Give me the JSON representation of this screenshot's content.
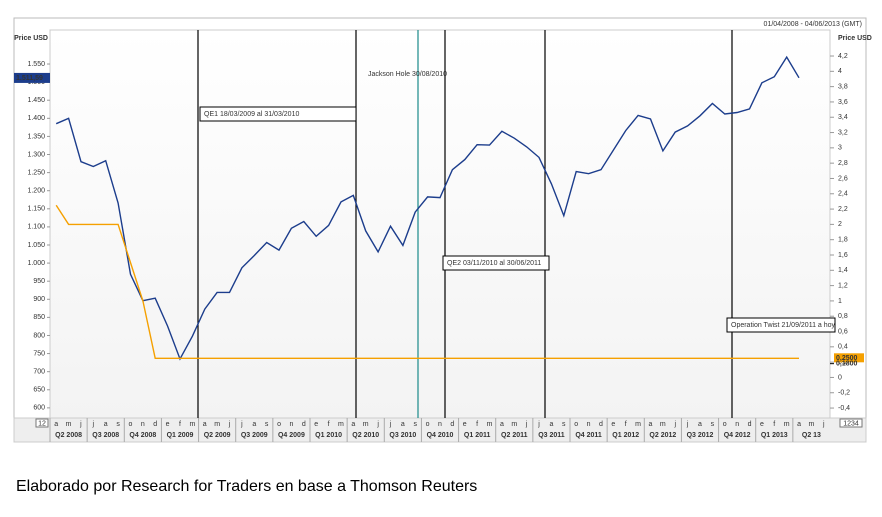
{
  "chart_data": {
    "type": "line",
    "date_range": "01/04/2008 - 04/06/2013 (GMT)",
    "y_axis_label": "Price USD",
    "y2_axis_label": "Price USD",
    "categories": [
      "a",
      "m",
      "j",
      "j",
      "a",
      "s",
      "o",
      "n",
      "d",
      "e",
      "f",
      "m",
      "a",
      "m",
      "j",
      "j",
      "a",
      "s",
      "o",
      "n",
      "d",
      "e",
      "f",
      "m",
      "a",
      "m",
      "j",
      "j",
      "a",
      "s",
      "o",
      "n",
      "d",
      "e",
      "f",
      "m",
      "a",
      "m",
      "j",
      "j",
      "a",
      "s",
      "o",
      "n",
      "d",
      "e",
      "f",
      "m",
      "a",
      "m",
      "j",
      "j",
      "a",
      "s",
      "o",
      "n",
      "d",
      "e",
      "f",
      "m",
      "a",
      "m",
      "j"
    ],
    "quarters": [
      "Q2 2008",
      "Q3 2008",
      "Q4 2008",
      "Q1 2009",
      "Q2 2009",
      "Q3 2009",
      "Q4 2009",
      "Q1 2010",
      "Q2 2010",
      "Q3 2010",
      "Q4 2010",
      "Q1 2011",
      "Q2 2011",
      "Q3 2011",
      "Q4 2011",
      "Q1 2012",
      "Q2 2012",
      "Q3 2012",
      "Q4 2012",
      "Q1 2013",
      "Q2 13"
    ],
    "series": [
      {
        "color": "#1c3d8c",
        "values": [
          1385,
          1400,
          1280,
          1267,
          1283,
          1166,
          969,
          896,
          903,
          826,
          735,
          798,
          873,
          919,
          919,
          987,
          1021,
          1057,
          1036,
          1096,
          1115,
          1074,
          1104,
          1169,
          1187,
          1089,
          1031,
          1102,
          1049,
          1141,
          1183,
          1181,
          1258,
          1286,
          1327,
          1326,
          1364,
          1345,
          1321,
          1292,
          1219,
          1131,
          1253,
          1247,
          1258,
          1312,
          1366,
          1408,
          1398,
          1310,
          1362,
          1379,
          1407,
          1441,
          1412,
          1416,
          1426,
          1498,
          1515,
          1569,
          1512,
          null,
          null
        ]
      },
      {
        "color": "#f5a000",
        "axis": "y2",
        "values": [
          2.25,
          2,
          2,
          2,
          2,
          2,
          1.5,
          1,
          0.25,
          0.25,
          0.25,
          0.25,
          0.25,
          0.25,
          0.25,
          0.25,
          0.25,
          0.25,
          0.25,
          0.25,
          0.25,
          0.25,
          0.25,
          0.25,
          0.25,
          0.25,
          0.25,
          0.25,
          0.25,
          0.25,
          0.25,
          0.25,
          0.25,
          0.25,
          0.25,
          0.25,
          0.25,
          0.25,
          0.25,
          0.25,
          0.25,
          0.25,
          0.25,
          0.25,
          0.25,
          0.25,
          0.25,
          0.25,
          0.25,
          0.25,
          0.25,
          0.25,
          0.25,
          0.25,
          0.25,
          0.25,
          0.25,
          0.25,
          0.25,
          0.25,
          0.25,
          null,
          null
        ]
      }
    ],
    "ylim": [
      572,
      1644
    ],
    "yticks": [
      600,
      650,
      700,
      750,
      800,
      850,
      900,
      950,
      {
        "value": 1000,
        "label": "1.000"
      },
      {
        "value": 1050,
        "label": "1.050"
      },
      {
        "value": 1100,
        "label": "1.100"
      },
      {
        "value": 1150,
        "label": "1.150"
      },
      {
        "value": 1200,
        "label": "1.200"
      },
      {
        "value": 1250,
        "label": "1.250"
      },
      {
        "value": 1300,
        "label": "1.300"
      },
      {
        "value": 1350,
        "label": "1.350"
      },
      {
        "value": 1400,
        "label": "1.400"
      },
      {
        "value": 1450,
        "label": "1.450"
      },
      {
        "value": 1500,
        "label": "1.500"
      },
      {
        "value": 1550,
        "label": "1.550"
      }
    ],
    "y2lim": [
      -0.53,
      4.54
    ],
    "y2ticks": [
      {
        "value": 4.2,
        "label": "4,2"
      },
      4,
      {
        "value": 3.8,
        "label": "3,8"
      },
      {
        "value": 3.6,
        "label": "3,6"
      },
      {
        "value": 3.4,
        "label": "3,4"
      },
      {
        "value": 3.2,
        "label": "3,2"
      },
      3,
      {
        "value": 2.8,
        "label": "2,8"
      },
      {
        "value": 2.6,
        "label": "2,6"
      },
      {
        "value": 2.4,
        "label": "2,4"
      },
      {
        "value": 2.2,
        "label": "2,2"
      },
      2,
      {
        "value": 1.8,
        "label": "1,8"
      },
      {
        "value": 1.6,
        "label": "1,6"
      },
      {
        "value": 1.4,
        "label": "1,4"
      },
      {
        "value": 1.2,
        "label": "1,2"
      },
      1,
      {
        "value": 0.8,
        "label": "0,8"
      },
      {
        "value": 0.6,
        "label": "0,6"
      },
      {
        "value": 0.4,
        "label": "0,4"
      },
      {
        "value": 0.2,
        "label": "0,2"
      },
      0,
      {
        "value": -0.2,
        "label": "-0,2"
      },
      {
        "value": -0.4,
        "label": "-0,4"
      }
    ],
    "y_tag": {
      "value": 1511.59,
      "label": "1.511,59"
    },
    "y2_tags": [
      {
        "value": 0.25,
        "label": "0,2500"
      },
      {
        "value": 0.18,
        "label": "0,1800"
      }
    ],
    "annotations": [
      "QE1 18/03/2009 al 31/03/2010",
      "Jackson Hole 30/08/2010",
      "QE2 03/11/2010 al 30/06/2011",
      "Operation Twist 21/09/2011 a hoy"
    ],
    "corner_labels": [
      "12",
      "1234"
    ],
    "grid": false,
    "caption": "Elaborado por Research for Traders en base a Thomson Reuters"
  }
}
